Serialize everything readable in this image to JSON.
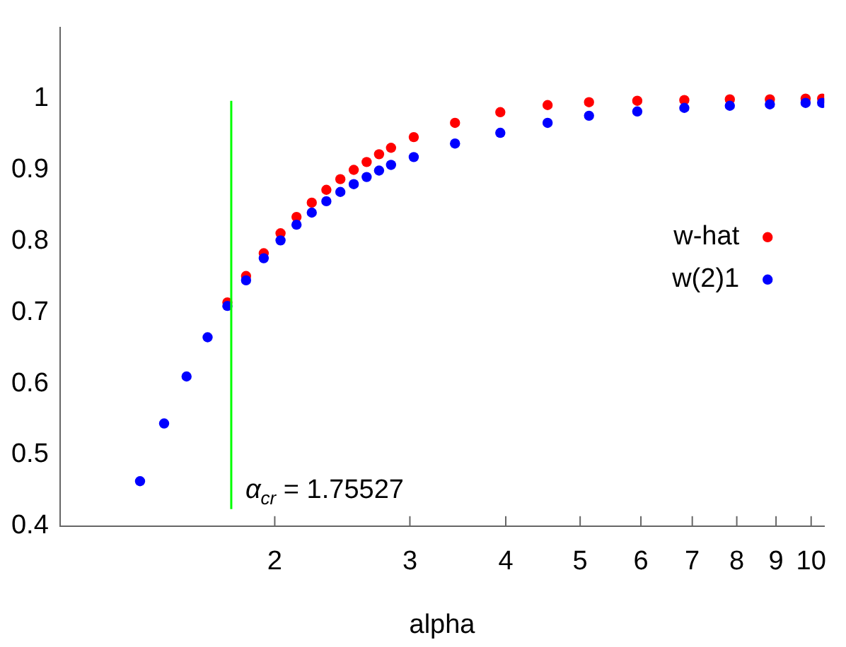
{
  "chart_data": {
    "type": "scatter",
    "xlabel": "alpha",
    "log": "x",
    "xlim": [
      1.05,
      10.4
    ],
    "xticks": [
      2,
      3,
      4,
      5,
      6,
      7,
      8,
      9,
      10
    ],
    "ylim": [
      0.4,
      1.1
    ],
    "yticks": [
      0.4,
      0.5,
      0.6,
      0.7,
      0.8,
      0.9,
      1
    ],
    "grid": false,
    "legend": "right",
    "marker": "circle",
    "series": [
      {
        "name": "w-hat",
        "color": "#ff0000",
        "x": [
          1.735,
          1.835,
          1.935,
          2.035,
          2.135,
          2.235,
          2.335,
          2.435,
          2.535,
          2.635,
          2.735,
          2.835,
          3.035,
          3.435,
          3.935,
          4.535,
          5.135,
          5.935,
          6.835,
          7.835,
          8.835,
          9.835,
          10.335
        ],
        "values": [
          0.714,
          0.751,
          0.783,
          0.811,
          0.834,
          0.854,
          0.872,
          0.887,
          0.9,
          0.911,
          0.922,
          0.931,
          0.946,
          0.966,
          0.981,
          0.991,
          0.995,
          0.997,
          0.998,
          0.999,
          0.999,
          1,
          1
        ]
      },
      {
        "name": "w(2)1",
        "color": "#0000ff",
        "x": [
          1.335,
          1.435,
          1.535,
          1.635,
          1.735,
          1.835,
          1.935,
          2.035,
          2.135,
          2.235,
          2.335,
          2.435,
          2.535,
          2.635,
          2.735,
          2.835,
          3.035,
          3.435,
          3.935,
          4.535,
          5.135,
          5.935,
          6.835,
          7.835,
          8.835,
          9.835,
          10.335
        ],
        "values": [
          0.463,
          0.544,
          0.61,
          0.665,
          0.709,
          0.745,
          0.776,
          0.801,
          0.823,
          0.84,
          0.856,
          0.869,
          0.88,
          0.89,
          0.899,
          0.907,
          0.918,
          0.937,
          0.952,
          0.966,
          0.976,
          0.982,
          0.987,
          0.99,
          0.992,
          0.994,
          0.994
        ]
      }
    ],
    "ref_lines": [
      {
        "axis": "x",
        "value": 1.75527,
        "color": "#00ff00"
      }
    ],
    "annotations": [
      {
        "text": "α$_{cr}$ = 1.75527",
        "x": 1.75527,
        "y": 0.45
      }
    ]
  }
}
